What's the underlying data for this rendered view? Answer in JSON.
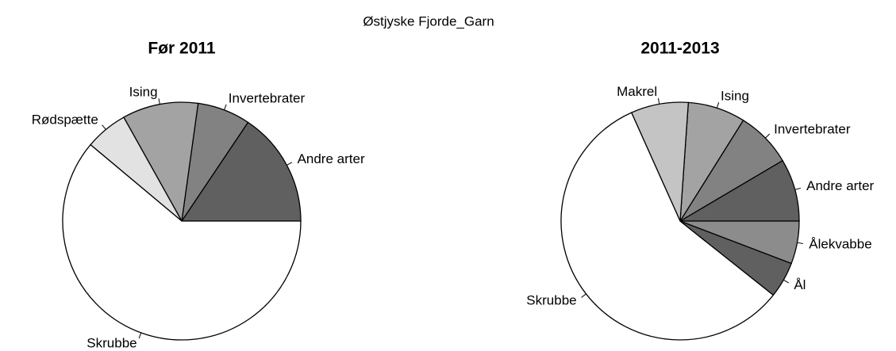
{
  "title": "Østjyske Fjorde_Garn",
  "chart_data": [
    {
      "type": "pie",
      "title": "Før 2011",
      "categories": [
        "Andre arter",
        "Invertebrater",
        "Ising",
        "Rødspætte",
        "Skrubbe"
      ],
      "values": [
        15.6,
        7.2,
        10.3,
        5.8,
        61.1
      ],
      "colors": [
        "#606060",
        "#828282",
        "#a3a3a3",
        "#e2e2e2",
        "#ffffff"
      ]
    },
    {
      "type": "pie",
      "title": "2011-2013",
      "categories": [
        "Andre arter",
        "Invertebrater",
        "Ising",
        "Makrel",
        "Skrubbe",
        "Ål",
        "Ålekvabbe"
      ],
      "values": [
        8.5,
        7.6,
        7.8,
        7.8,
        57.6,
        4.9,
        5.8
      ],
      "colors": [
        "#606060",
        "#828282",
        "#a3a3a3",
        "#c4c4c4",
        "#ffffff",
        "#606060",
        "#8c8c8c"
      ]
    }
  ]
}
